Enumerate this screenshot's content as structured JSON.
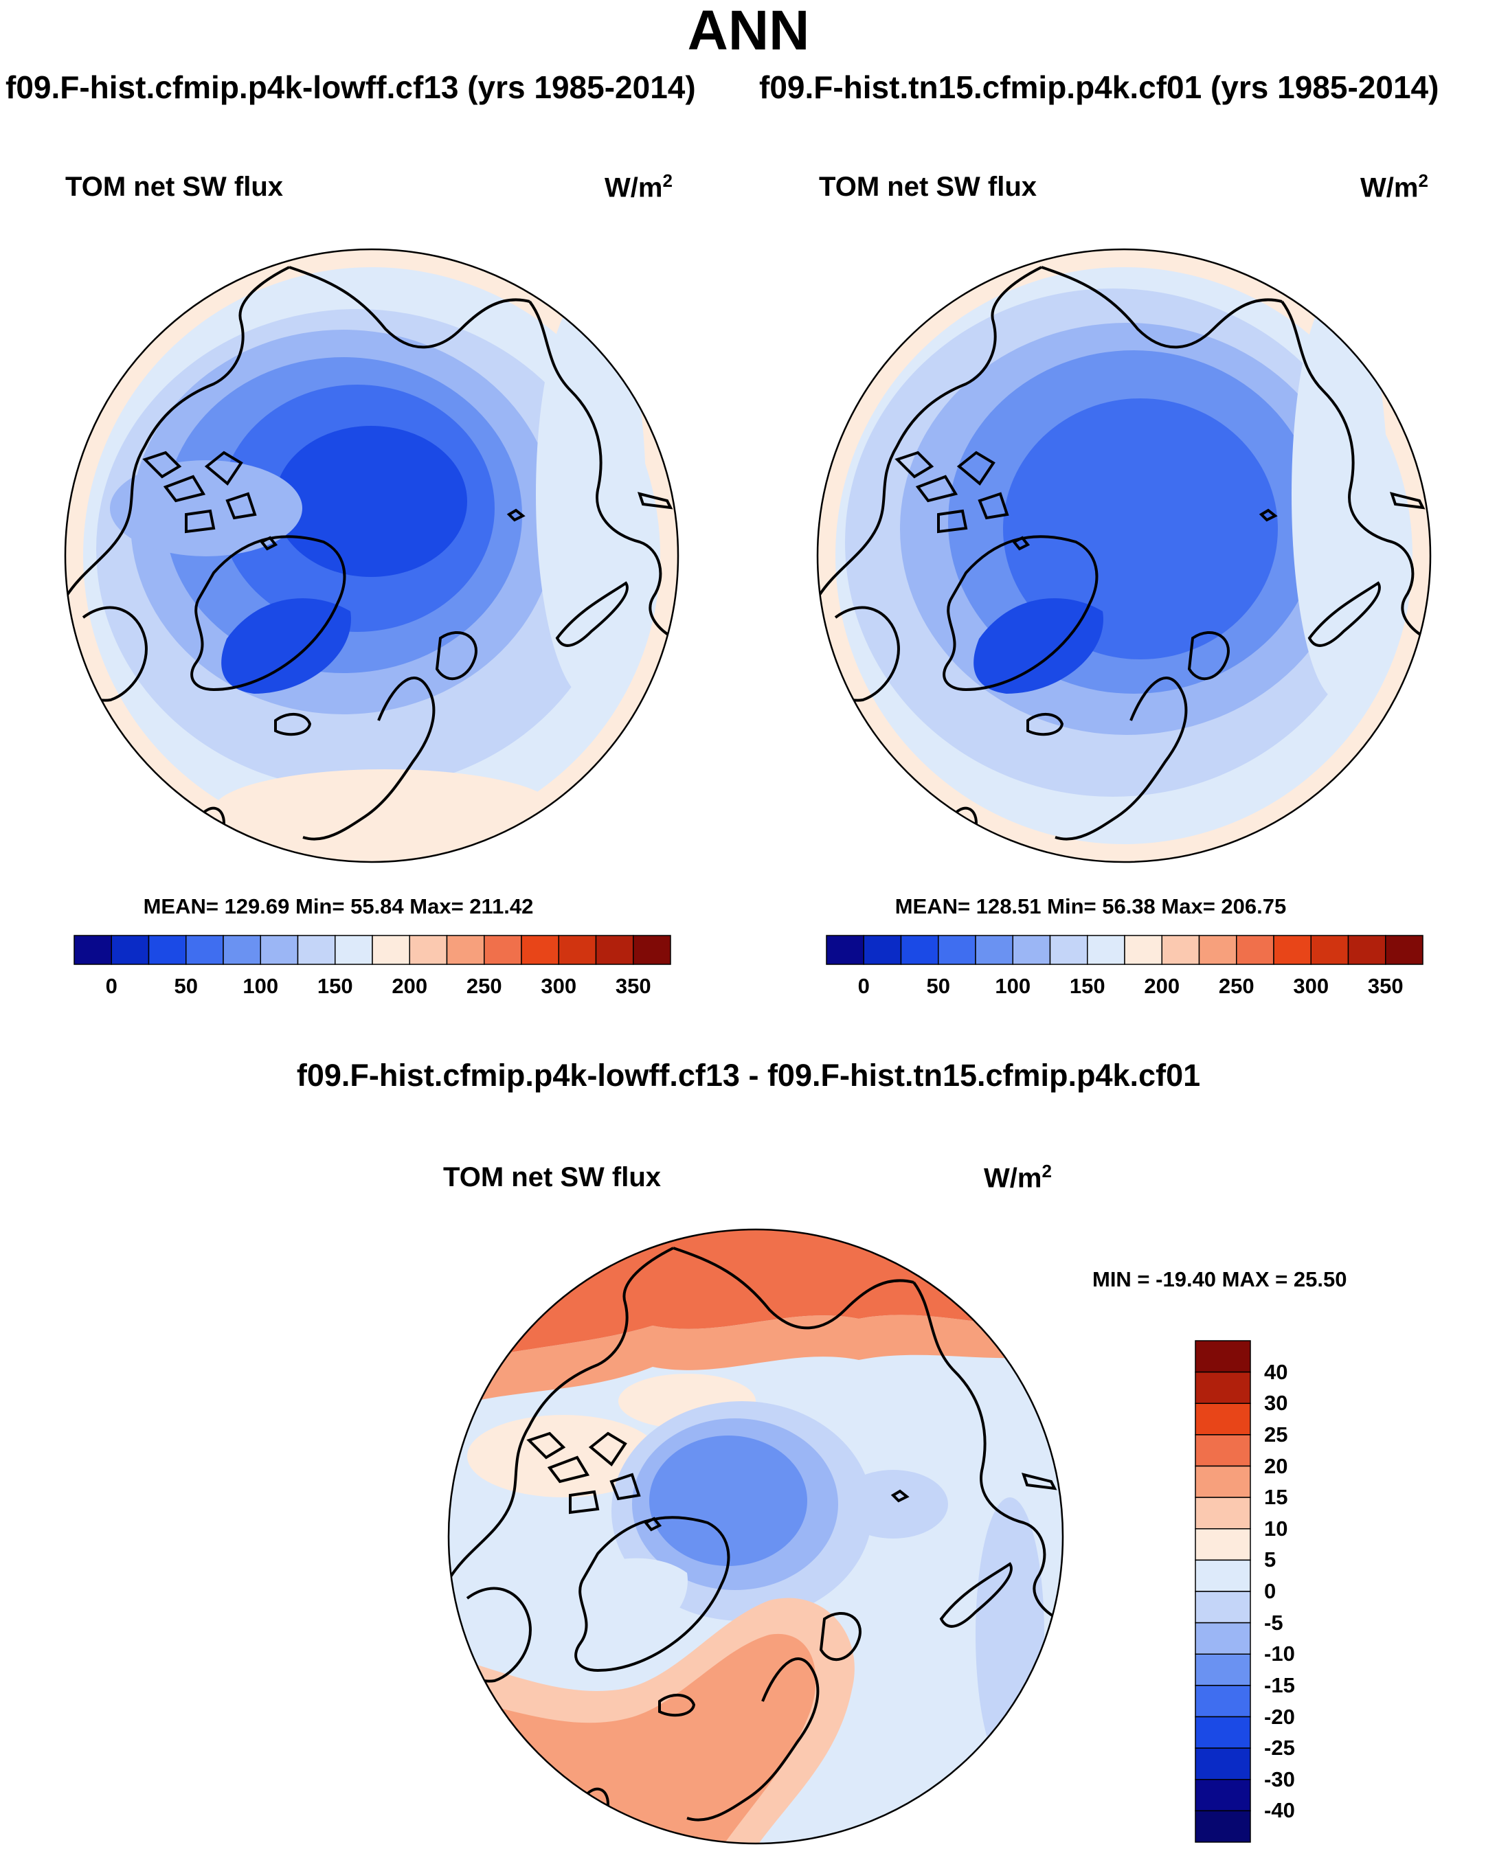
{
  "figure": {
    "title": "ANN",
    "case_a_label": "f09.F-hist.cfmip.p4k-lowff.cf13 (yrs 1985-2014)",
    "case_b_label": "f09.F-hist.tn15.cfmip.p4k.cf01 (yrs 1985-2014)",
    "diff_label": "f09.F-hist.cfmip.p4k-lowff.cf13 - f09.F-hist.tn15.cfmip.p4k.cf01"
  },
  "panels": [
    {
      "variable": "TOM net SW flux",
      "units": "W/m",
      "units_exp": "2",
      "stats": "MEAN= 129.69  Min=  55.84  Max= 211.42"
    },
    {
      "variable": "TOM net SW flux",
      "units": "W/m",
      "units_exp": "2",
      "stats": "MEAN= 128.51  Min=  56.38  Max= 206.75"
    }
  ],
  "diff_panel": {
    "variable": "TOM net SW flux",
    "units": "W/m",
    "units_exp": "2",
    "stats": "MIN = -19.40 MAX =  25.50"
  },
  "abs_colorbar": {
    "ticks": [
      "0",
      "50",
      "100",
      "150",
      "200",
      "250",
      "300",
      "350"
    ],
    "colors": [
      "#08088c",
      "#0a2bc6",
      "#1b4ae6",
      "#3f6ef0",
      "#6a92f2",
      "#9bb6f5",
      "#c4d5f8",
      "#ddeafa",
      "#fdebdd",
      "#fbc9b0",
      "#f7a07c",
      "#f0704b",
      "#e84518",
      "#d13410",
      "#b1200c",
      "#800a06"
    ]
  },
  "diff_colorbar": {
    "labels": [
      "40",
      "30",
      "25",
      "20",
      "15",
      "10",
      "5",
      "0",
      "-5",
      "-10",
      "-15",
      "-20",
      "-25",
      "-30",
      "-40"
    ],
    "colors": [
      "#800a06",
      "#b1200c",
      "#e84518",
      "#f0704b",
      "#f7a07c",
      "#fbc9b0",
      "#fdebdd",
      "#ddeafa",
      "#c4d5f8",
      "#9bb6f5",
      "#6a92f2",
      "#3f6ef0",
      "#1b4ae6",
      "#0a2bc6",
      "#08088c",
      "#060670"
    ]
  },
  "chart_data": {
    "type": "polar contour maps (North Polar Stereographic)",
    "title": "ANN",
    "field": "TOM net SW flux (W/m2)",
    "panels": [
      {
        "case": "f09.F-hist.cfmip.p4k-lowff.cf13 (yrs 1985-2014)",
        "mean": 129.69,
        "min": 55.84,
        "max": 211.42
      },
      {
        "case": "f09.F-hist.tn15.cfmip.p4k.cf01 (yrs 1985-2014)",
        "mean": 128.51,
        "min": 56.38,
        "max": 206.75
      },
      {
        "case": "difference",
        "min": -19.4,
        "max": 25.5
      }
    ],
    "abs_levels": [
      0,
      50,
      100,
      150,
      200,
      250,
      300,
      350
    ],
    "diff_levels": [
      -40,
      -30,
      -25,
      -20,
      -15,
      -10,
      -5,
      0,
      5,
      10,
      15,
      20,
      25,
      30,
      40
    ]
  }
}
